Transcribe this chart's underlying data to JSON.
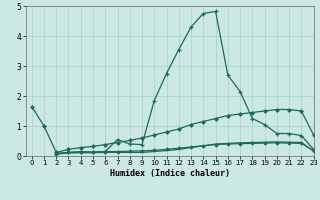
{
  "xlabel": "Humidex (Indice chaleur)",
  "xlim": [
    -0.5,
    23
  ],
  "ylim": [
    0,
    5
  ],
  "xticks": [
    0,
    1,
    2,
    3,
    4,
    5,
    6,
    7,
    8,
    9,
    10,
    11,
    12,
    13,
    14,
    15,
    16,
    17,
    18,
    19,
    20,
    21,
    22,
    23
  ],
  "yticks": [
    0,
    1,
    2,
    3,
    4,
    5
  ],
  "bg_color": "#cce8e4",
  "line_color": "#1a6b5a",
  "grid_color": "#aacfcb",
  "line1": {
    "x": [
      0,
      1,
      2,
      3,
      4,
      5,
      6,
      7,
      8,
      9,
      10,
      11,
      12,
      13,
      14,
      15,
      16,
      17,
      18,
      19,
      20,
      21,
      22,
      23
    ],
    "y": [
      1.65,
      1.0,
      0.12,
      0.22,
      0.28,
      0.32,
      0.38,
      0.45,
      0.52,
      0.6,
      0.7,
      0.8,
      0.9,
      1.05,
      1.15,
      1.25,
      1.35,
      1.4,
      1.45,
      1.5,
      1.55,
      1.55,
      1.5,
      0.7
    ]
  },
  "line2": {
    "x": [
      2,
      3,
      4,
      5,
      6,
      7,
      8,
      9,
      10,
      11,
      12,
      13,
      14,
      15,
      16,
      17,
      18,
      19,
      20,
      21,
      22,
      23
    ],
    "y": [
      0.08,
      0.12,
      0.14,
      0.13,
      0.14,
      0.15,
      0.16,
      0.17,
      0.19,
      0.22,
      0.26,
      0.3,
      0.34,
      0.38,
      0.4,
      0.41,
      0.42,
      0.43,
      0.44,
      0.43,
      0.42,
      0.18
    ]
  },
  "line3": {
    "x": [
      2,
      3,
      4,
      5,
      6,
      7,
      8,
      9,
      10,
      11,
      12,
      13,
      14,
      15,
      16,
      17,
      18,
      19,
      20,
      21,
      22,
      23
    ],
    "y": [
      0.08,
      0.12,
      0.14,
      0.13,
      0.15,
      0.55,
      0.4,
      0.38,
      1.85,
      2.75,
      3.55,
      4.3,
      4.75,
      4.82,
      2.7,
      2.15,
      1.25,
      1.05,
      0.75,
      0.75,
      0.68,
      0.22
    ]
  },
  "line4": {
    "x": [
      2,
      3,
      4,
      5,
      6,
      7,
      8,
      9,
      10,
      11,
      12,
      13,
      14,
      15,
      16,
      17,
      18,
      19,
      20,
      21,
      22,
      23
    ],
    "y": [
      0.06,
      0.1,
      0.11,
      0.11,
      0.12,
      0.12,
      0.12,
      0.12,
      0.15,
      0.18,
      0.22,
      0.28,
      0.34,
      0.4,
      0.42,
      0.44,
      0.45,
      0.46,
      0.47,
      0.46,
      0.45,
      0.16
    ]
  }
}
